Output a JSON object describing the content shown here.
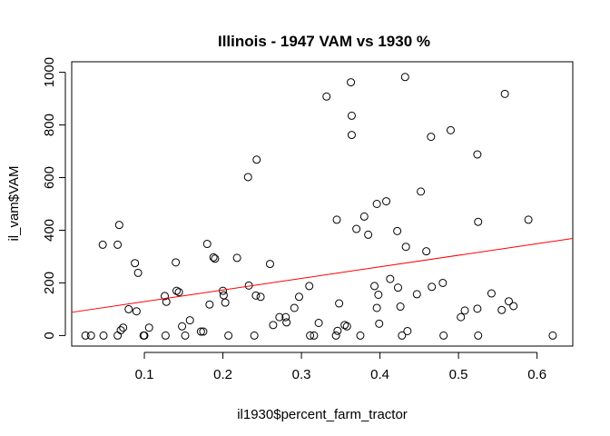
{
  "chart_data": {
    "type": "scatter",
    "title": "Illinois - 1947 VAM vs 1930 %",
    "xlabel": "il1930$percent_farm_tractor",
    "ylabel": "il_vam$VAM",
    "xlim": [
      0.0075,
      0.6455
    ],
    "ylim": [
      -40,
      1040
    ],
    "x_ticks": [
      0.1,
      0.2,
      0.3,
      0.4,
      0.5,
      0.6
    ],
    "y_ticks": [
      0,
      200,
      400,
      600,
      800,
      1000
    ],
    "series": [
      {
        "points": [
          [
            0.025,
            0
          ],
          [
            0.032,
            0
          ],
          [
            0.047,
            345
          ],
          [
            0.048,
            0
          ],
          [
            0.066,
            345
          ],
          [
            0.066,
            0
          ],
          [
            0.068,
            420
          ],
          [
            0.07,
            20
          ],
          [
            0.073,
            30
          ],
          [
            0.08,
            100
          ],
          [
            0.088,
            275
          ],
          [
            0.09,
            92
          ],
          [
            0.092,
            238
          ],
          [
            0.099,
            0
          ],
          [
            0.1,
            0
          ],
          [
            0.106,
            30
          ],
          [
            0.126,
            150
          ],
          [
            0.127,
            0
          ],
          [
            0.128,
            128
          ],
          [
            0.14,
            278
          ],
          [
            0.141,
            170
          ],
          [
            0.144,
            165
          ],
          [
            0.148,
            35
          ],
          [
            0.152,
            0
          ],
          [
            0.158,
            58
          ],
          [
            0.172,
            15
          ],
          [
            0.175,
            15
          ],
          [
            0.18,
            348
          ],
          [
            0.183,
            118
          ],
          [
            0.188,
            297
          ],
          [
            0.19,
            292
          ],
          [
            0.2,
            170
          ],
          [
            0.201,
            153
          ],
          [
            0.203,
            125
          ],
          [
            0.207,
            0
          ],
          [
            0.218,
            295
          ],
          [
            0.232,
            602
          ],
          [
            0.233,
            190
          ],
          [
            0.24,
            0
          ],
          [
            0.242,
            152
          ],
          [
            0.243,
            668
          ],
          [
            0.248,
            147
          ],
          [
            0.26,
            272
          ],
          [
            0.264,
            40
          ],
          [
            0.272,
            70
          ],
          [
            0.28,
            70
          ],
          [
            0.281,
            50
          ],
          [
            0.291,
            105
          ],
          [
            0.297,
            147
          ],
          [
            0.31,
            188
          ],
          [
            0.311,
            0
          ],
          [
            0.316,
            0
          ],
          [
            0.322,
            48
          ],
          [
            0.332,
            908
          ],
          [
            0.344,
            0
          ],
          [
            0.345,
            440
          ],
          [
            0.346,
            18
          ],
          [
            0.348,
            122
          ],
          [
            0.355,
            40
          ],
          [
            0.358,
            35
          ],
          [
            0.363,
            962
          ],
          [
            0.364,
            835
          ],
          [
            0.364,
            762
          ],
          [
            0.37,
            405
          ],
          [
            0.375,
            0
          ],
          [
            0.38,
            452
          ],
          [
            0.385,
            383
          ],
          [
            0.393,
            188
          ],
          [
            0.396,
            500
          ],
          [
            0.396,
            105
          ],
          [
            0.398,
            155
          ],
          [
            0.399,
            45
          ],
          [
            0.408,
            510
          ],
          [
            0.413,
            215
          ],
          [
            0.422,
            397
          ],
          [
            0.423,
            182
          ],
          [
            0.426,
            110
          ],
          [
            0.428,
            0
          ],
          [
            0.432,
            982
          ],
          [
            0.433,
            337
          ],
          [
            0.435,
            17
          ],
          [
            0.447,
            157
          ],
          [
            0.452,
            547
          ],
          [
            0.459,
            320
          ],
          [
            0.465,
            755
          ],
          [
            0.466,
            185
          ],
          [
            0.48,
            200
          ],
          [
            0.481,
            0
          ],
          [
            0.49,
            780
          ],
          [
            0.503,
            70
          ],
          [
            0.508,
            95
          ],
          [
            0.524,
            688
          ],
          [
            0.524,
            102
          ],
          [
            0.525,
            432
          ],
          [
            0.525,
            0
          ],
          [
            0.542,
            160
          ],
          [
            0.555,
            97
          ],
          [
            0.559,
            918
          ],
          [
            0.564,
            130
          ],
          [
            0.57,
            112
          ],
          [
            0.589,
            440
          ],
          [
            0.62,
            0
          ]
        ]
      }
    ],
    "fit_line": {
      "color": "#ff0000",
      "intercept": 85,
      "slope": 440
    },
    "grid": false,
    "legend": "none"
  }
}
